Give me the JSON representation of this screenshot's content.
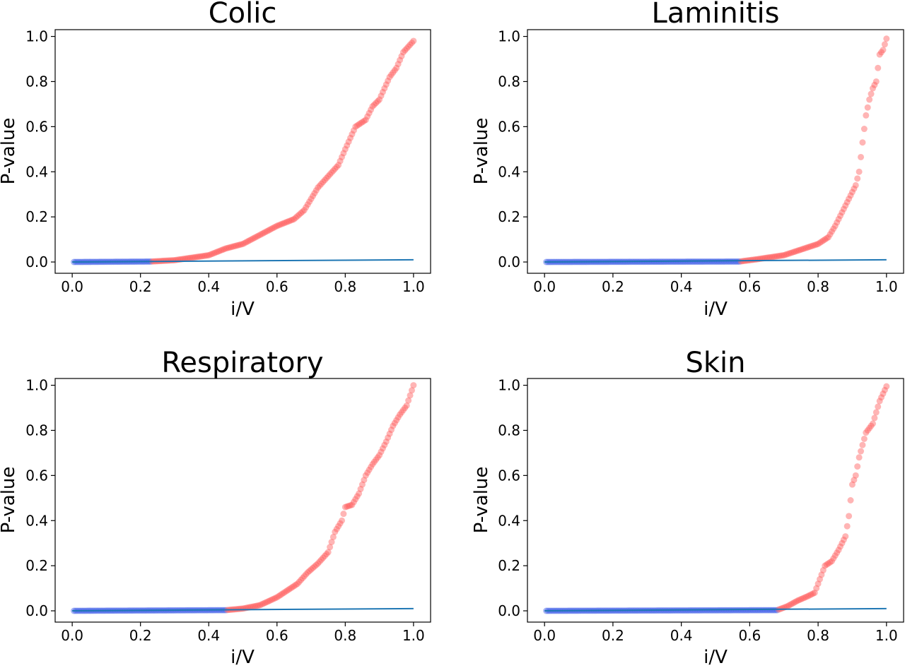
{
  "colors": {
    "significant": "#4060e8",
    "nonsignificant": "#ff5a5a",
    "threshold_line": "#1f77b4",
    "axes": "#000000"
  },
  "chart_data": [
    {
      "type": "scatter",
      "title": "Colic",
      "xlabel": "i/V",
      "ylabel": "P-value",
      "xlim": [
        -0.05,
        1.05
      ],
      "ylim": [
        -0.05,
        1.03
      ],
      "xticks": [
        "0.0",
        "0.2",
        "0.4",
        "0.6",
        "0.8",
        "1.0"
      ],
      "yticks": [
        "0.0",
        "0.2",
        "0.4",
        "0.6",
        "0.8",
        "1.0"
      ],
      "grid": false,
      "threshold_line": {
        "x": [
          0,
          1
        ],
        "y": [
          0,
          0.01
        ]
      },
      "significant_cutoff": 0.23,
      "curve": [
        [
          0.0,
          0.0
        ],
        [
          0.23,
          0.002
        ],
        [
          0.3,
          0.008
        ],
        [
          0.4,
          0.03
        ],
        [
          0.45,
          0.06
        ],
        [
          0.5,
          0.08
        ],
        [
          0.55,
          0.12
        ],
        [
          0.6,
          0.16
        ],
        [
          0.65,
          0.19
        ],
        [
          0.68,
          0.23
        ],
        [
          0.7,
          0.28
        ],
        [
          0.72,
          0.33
        ],
        [
          0.75,
          0.38
        ],
        [
          0.78,
          0.43
        ],
        [
          0.8,
          0.5
        ],
        [
          0.83,
          0.6
        ],
        [
          0.86,
          0.63
        ],
        [
          0.88,
          0.69
        ],
        [
          0.9,
          0.72
        ],
        [
          0.93,
          0.82
        ],
        [
          0.95,
          0.86
        ],
        [
          0.97,
          0.93
        ],
        [
          1.0,
          0.98
        ]
      ]
    },
    {
      "type": "scatter",
      "title": "Laminitis",
      "xlabel": "i/V",
      "ylabel": "P-value",
      "xlim": [
        -0.05,
        1.05
      ],
      "ylim": [
        -0.05,
        1.03
      ],
      "xticks": [
        "0.0",
        "0.2",
        "0.4",
        "0.6",
        "0.8",
        "1.0"
      ],
      "yticks": [
        "0.0",
        "0.2",
        "0.4",
        "0.6",
        "0.8",
        "1.0"
      ],
      "grid": false,
      "threshold_line": {
        "x": [
          0,
          1
        ],
        "y": [
          0,
          0.01
        ]
      },
      "significant_cutoff": 0.57,
      "curve": [
        [
          0.0,
          0.0
        ],
        [
          0.57,
          0.002
        ],
        [
          0.62,
          0.012
        ],
        [
          0.7,
          0.03
        ],
        [
          0.75,
          0.055
        ],
        [
          0.8,
          0.08
        ],
        [
          0.83,
          0.11
        ],
        [
          0.85,
          0.16
        ],
        [
          0.87,
          0.22
        ],
        [
          0.89,
          0.28
        ],
        [
          0.91,
          0.34
        ],
        [
          0.92,
          0.4
        ],
        [
          0.93,
          0.53
        ],
        [
          0.94,
          0.65
        ],
        [
          0.95,
          0.72
        ],
        [
          0.96,
          0.77
        ],
        [
          0.97,
          0.8
        ],
        [
          0.98,
          0.92
        ],
        [
          0.99,
          0.94
        ],
        [
          1.0,
          0.99
        ]
      ]
    },
    {
      "type": "scatter",
      "title": "Respiratory",
      "xlabel": "i/V",
      "ylabel": "P-value",
      "xlim": [
        -0.05,
        1.05
      ],
      "ylim": [
        -0.05,
        1.03
      ],
      "xticks": [
        "0.0",
        "0.2",
        "0.4",
        "0.6",
        "0.8",
        "1.0"
      ],
      "yticks": [
        "0.0",
        "0.2",
        "0.4",
        "0.6",
        "0.8",
        "1.0"
      ],
      "grid": false,
      "threshold_line": {
        "x": [
          0,
          1
        ],
        "y": [
          0,
          0.01
        ]
      },
      "significant_cutoff": 0.45,
      "curve": [
        [
          0.0,
          0.0
        ],
        [
          0.45,
          0.003
        ],
        [
          0.5,
          0.01
        ],
        [
          0.55,
          0.025
        ],
        [
          0.6,
          0.06
        ],
        [
          0.63,
          0.09
        ],
        [
          0.66,
          0.12
        ],
        [
          0.69,
          0.17
        ],
        [
          0.72,
          0.21
        ],
        [
          0.75,
          0.26
        ],
        [
          0.77,
          0.35
        ],
        [
          0.79,
          0.4
        ],
        [
          0.8,
          0.46
        ],
        [
          0.82,
          0.47
        ],
        [
          0.84,
          0.52
        ],
        [
          0.86,
          0.6
        ],
        [
          0.88,
          0.65
        ],
        [
          0.9,
          0.69
        ],
        [
          0.92,
          0.75
        ],
        [
          0.94,
          0.82
        ],
        [
          0.96,
          0.87
        ],
        [
          0.98,
          0.91
        ],
        [
          1.0,
          1.0
        ]
      ]
    },
    {
      "type": "scatter",
      "title": "Skin",
      "xlabel": "i/V",
      "ylabel": "P-value",
      "xlim": [
        -0.05,
        1.05
      ],
      "ylim": [
        -0.05,
        1.03
      ],
      "xticks": [
        "0.0",
        "0.2",
        "0.4",
        "0.6",
        "0.8",
        "1.0"
      ],
      "yticks": [
        "0.0",
        "0.2",
        "0.4",
        "0.6",
        "0.8",
        "1.0"
      ],
      "grid": false,
      "threshold_line": {
        "x": [
          0,
          1
        ],
        "y": [
          0,
          0.01
        ]
      },
      "significant_cutoff": 0.68,
      "curve": [
        [
          0.0,
          0.0
        ],
        [
          0.68,
          0.003
        ],
        [
          0.71,
          0.02
        ],
        [
          0.74,
          0.045
        ],
        [
          0.77,
          0.065
        ],
        [
          0.79,
          0.08
        ],
        [
          0.8,
          0.12
        ],
        [
          0.82,
          0.2
        ],
        [
          0.84,
          0.22
        ],
        [
          0.86,
          0.27
        ],
        [
          0.88,
          0.33
        ],
        [
          0.89,
          0.42
        ],
        [
          0.9,
          0.56
        ],
        [
          0.91,
          0.6
        ],
        [
          0.92,
          0.68
        ],
        [
          0.94,
          0.79
        ],
        [
          0.96,
          0.83
        ],
        [
          0.98,
          0.93
        ],
        [
          1.0,
          0.995
        ]
      ]
    }
  ]
}
